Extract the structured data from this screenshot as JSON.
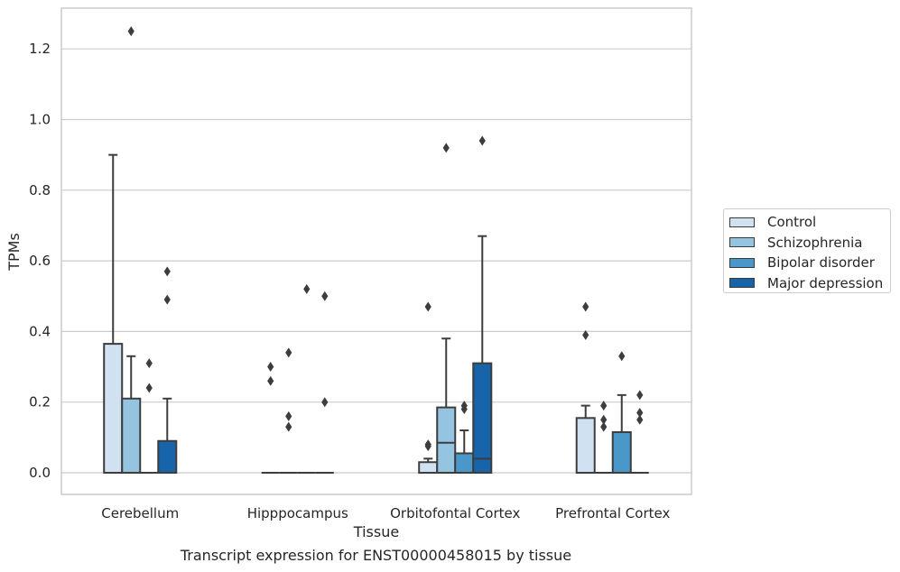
{
  "caption": "Transcript expression for ENST00000458015 by tissue",
  "chart_data": {
    "type": "box",
    "xlabel": "Tissue",
    "ylabel": "TPMs",
    "ylim": [
      -0.06,
      1.32
    ],
    "yticks": [
      "0.0",
      "0.2",
      "0.4",
      "0.6",
      "0.8",
      "1.0",
      "1.2"
    ],
    "ytick_values": [
      0.0,
      0.2,
      0.4,
      0.6,
      0.8,
      1.0,
      1.2
    ],
    "grid": "horizontal",
    "legend_placement": "right, outside",
    "categories": [
      "Cerebellum",
      "Hipppocampus",
      "Orbitofontal Cortex",
      "Prefrontal Cortex"
    ],
    "series": [
      {
        "name": "Control",
        "color": "#d0e1f2",
        "boxes": [
          {
            "q1": 0.0,
            "median": 0.0,
            "q3": 0.365,
            "whisker_low": 0.0,
            "whisker_high": 0.9,
            "outliers": []
          },
          {
            "q1": 0.0,
            "median": 0.0,
            "q3": 0.0,
            "whisker_low": 0.0,
            "whisker_high": 0.0,
            "outliers": [
              0.3,
              0.26
            ]
          },
          {
            "q1": 0.0,
            "median": 0.0,
            "q3": 0.03,
            "whisker_low": 0.0,
            "whisker_high": 0.04,
            "outliers": [
              0.47,
              0.08,
              0.075
            ]
          },
          {
            "q1": 0.0,
            "median": 0.0,
            "q3": 0.155,
            "whisker_low": 0.0,
            "whisker_high": 0.19,
            "outliers": [
              0.47,
              0.39
            ]
          }
        ]
      },
      {
        "name": "Schizophrenia",
        "color": "#94c4df",
        "boxes": [
          {
            "q1": 0.0,
            "median": 0.0,
            "q3": 0.21,
            "whisker_low": 0.0,
            "whisker_high": 0.33,
            "outliers": [
              1.25
            ]
          },
          {
            "q1": 0.0,
            "median": 0.0,
            "q3": 0.0,
            "whisker_low": 0.0,
            "whisker_high": 0.0,
            "outliers": [
              0.34,
              0.16,
              0.13
            ]
          },
          {
            "q1": 0.0,
            "median": 0.085,
            "q3": 0.185,
            "whisker_low": 0.0,
            "whisker_high": 0.38,
            "outliers": [
              0.92
            ]
          },
          {
            "q1": 0.0,
            "median": 0.0,
            "q3": 0.0,
            "whisker_low": 0.0,
            "whisker_high": 0.0,
            "outliers": [
              0.19,
              0.15,
              0.13
            ]
          }
        ]
      },
      {
        "name": "Bipolar disorder",
        "color": "#4a98c9",
        "boxes": [
          {
            "q1": 0.0,
            "median": 0.0,
            "q3": 0.0,
            "whisker_low": 0.0,
            "whisker_high": 0.0,
            "outliers": [
              0.31,
              0.24
            ]
          },
          {
            "q1": 0.0,
            "median": 0.0,
            "q3": 0.0,
            "whisker_low": 0.0,
            "whisker_high": 0.0,
            "outliers": [
              0.52
            ]
          },
          {
            "q1": 0.0,
            "median": 0.0,
            "q3": 0.055,
            "whisker_low": 0.0,
            "whisker_high": 0.12,
            "outliers": [
              0.19,
              0.18
            ]
          },
          {
            "q1": 0.0,
            "median": 0.0,
            "q3": 0.115,
            "whisker_low": 0.0,
            "whisker_high": 0.22,
            "outliers": [
              0.33
            ]
          }
        ]
      },
      {
        "name": "Major depression",
        "color": "#1764ab",
        "boxes": [
          {
            "q1": 0.0,
            "median": 0.0,
            "q3": 0.09,
            "whisker_low": 0.0,
            "whisker_high": 0.21,
            "outliers": [
              0.57,
              0.49
            ]
          },
          {
            "q1": 0.0,
            "median": 0.0,
            "q3": 0.0,
            "whisker_low": 0.0,
            "whisker_high": 0.0,
            "outliers": [
              0.5,
              0.2
            ]
          },
          {
            "q1": 0.0,
            "median": 0.04,
            "q3": 0.31,
            "whisker_low": 0.0,
            "whisker_high": 0.67,
            "outliers": [
              0.94
            ]
          },
          {
            "q1": 0.0,
            "median": 0.0,
            "q3": 0.0,
            "whisker_low": 0.0,
            "whisker_high": 0.0,
            "outliers": [
              0.22,
              0.17,
              0.15
            ]
          }
        ]
      }
    ]
  }
}
